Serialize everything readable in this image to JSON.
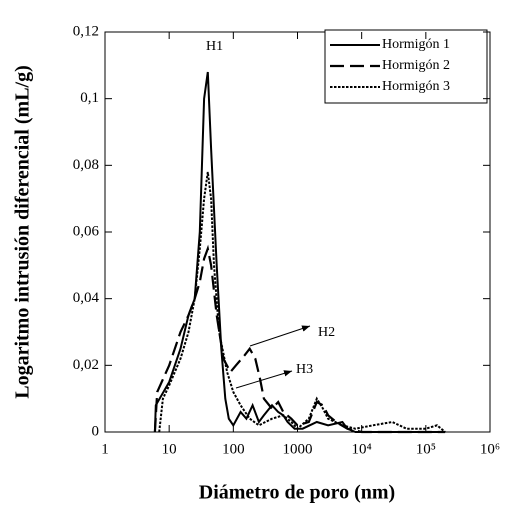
{
  "chart_data": {
    "type": "line",
    "xlabel": "Diámetro de poro (nm)",
    "ylabel": "Logaritmo intrusión diferencial (mL/g)",
    "xscale": "log",
    "xlim": [
      1,
      1000000
    ],
    "ylim": [
      0,
      0.12
    ],
    "xticks": [
      1,
      10,
      100,
      1000,
      {
        "value": 10000,
        "label": "10⁴"
      },
      {
        "value": 100000,
        "label": "10⁵"
      },
      {
        "value": 1000000,
        "label": "10⁶"
      }
    ],
    "yticks": [
      0,
      {
        "value": 0.02,
        "label": "0,02"
      },
      {
        "value": 0.04,
        "label": "0,04"
      },
      {
        "value": 0.06,
        "label": "0,06"
      },
      {
        "value": 0.08,
        "label": "0,08"
      },
      {
        "value": 0.1,
        "label": "0,1"
      },
      {
        "value": 0.12,
        "label": "0,12"
      }
    ],
    "legend": "upper right",
    "annotations": [
      "H1",
      "H2",
      "H3"
    ],
    "series": [
      {
        "name": "Hormigón 1",
        "color": "#000000",
        "line_style": "solid",
        "x": [
          6,
          6.2,
          10,
          15,
          20,
          25,
          30,
          35,
          40,
          45,
          55,
          65,
          75,
          85,
          100,
          130,
          160,
          200,
          250,
          300,
          400,
          500,
          600,
          700,
          900,
          1200,
          2000,
          3000,
          5000,
          6000,
          8000,
          20000,
          100000,
          200000
        ],
        "values": [
          0,
          0.008,
          0.015,
          0.025,
          0.035,
          0.04,
          0.06,
          0.1,
          0.108,
          0.085,
          0.05,
          0.025,
          0.01,
          0.004,
          0.002,
          0.006,
          0.004,
          0.008,
          0.003,
          0.005,
          0.008,
          0.006,
          0.005,
          0.003,
          0.001,
          0.001,
          0.003,
          0.002,
          0.003,
          0.001,
          0,
          0,
          0,
          0
        ]
      },
      {
        "name": "Hormigón 2",
        "color": "#000000",
        "line_style": "dashed",
        "x": [
          6,
          6.5,
          10,
          15,
          20,
          25,
          30,
          35,
          40,
          45,
          55,
          70,
          90,
          110,
          150,
          180,
          220,
          260,
          300,
          400,
          500,
          600,
          800,
          1000,
          1500,
          2000,
          2500,
          3000,
          4000,
          6000,
          10000,
          200000
        ],
        "values": [
          0,
          0.012,
          0.02,
          0.03,
          0.035,
          0.04,
          0.045,
          0.052,
          0.055,
          0.05,
          0.035,
          0.022,
          0.018,
          0.02,
          0.023,
          0.025,
          0.022,
          0.016,
          0.01,
          0.007,
          0.009,
          0.006,
          0.004,
          0.002,
          0.003,
          0.009,
          0.008,
          0.005,
          0.003,
          0.001,
          0,
          0
        ]
      },
      {
        "name": "Hormigón 3",
        "color": "#000000",
        "line_style": "dotted",
        "x": [
          7,
          8,
          10,
          15,
          20,
          25,
          30,
          35,
          40,
          45,
          50,
          60,
          80,
          100,
          130,
          180,
          250,
          400,
          600,
          800,
          1000,
          1500,
          2000,
          2500,
          3000,
          5000,
          8000,
          15000,
          30000,
          50000,
          100000,
          150000,
          200000
        ],
        "values": [
          0,
          0.01,
          0.014,
          0.022,
          0.03,
          0.04,
          0.055,
          0.07,
          0.078,
          0.07,
          0.05,
          0.03,
          0.018,
          0.012,
          0.008,
          0.004,
          0.002,
          0.004,
          0.005,
          0.003,
          0.001,
          0.004,
          0.01,
          0.007,
          0.004,
          0.002,
          0.001,
          0.002,
          0.003,
          0.001,
          0.001,
          0.002,
          0
        ]
      }
    ]
  }
}
